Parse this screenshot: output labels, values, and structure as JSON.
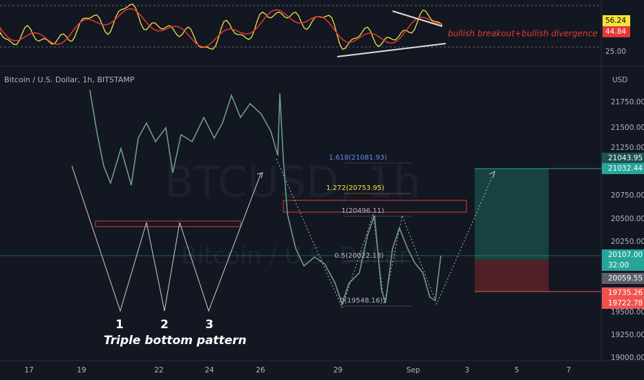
{
  "indicator": {
    "labels": [
      "56.24",
      "44.84",
      "25.00"
    ],
    "annotation": "bullish breakout+bullish divergence"
  },
  "symbol": "Bitcoin / U.S. Dollar, 1h, BITSTAMP",
  "watermark": {
    "ticker": "BTCUSD, 1h",
    "name": "Bitcoin / U.S. Dollar"
  },
  "price_axis": {
    "unit": "USD",
    "ticks": [
      "21750.00",
      "21500.00",
      "21250.00",
      "20750.00",
      "20500.00",
      "20250.00",
      "19500.00",
      "19250.00",
      "19000.00"
    ]
  },
  "price_tags": [
    "21043.95",
    "21032.44",
    "20107.00",
    "32:00",
    "20059.55",
    "19735.26",
    "19722.78"
  ],
  "time_axis": [
    "17",
    "19",
    "22",
    "24",
    "26",
    "29",
    "Sep",
    "3",
    "5",
    "7"
  ],
  "fib_levels": [
    "1.618(21081.93)",
    "1.272(20753.95)",
    "1(20496.11)",
    "0.5(20022.13)",
    "0(19548.16)"
  ],
  "pattern": {
    "points": [
      "1",
      "2",
      "3"
    ],
    "label": "Triple bottom pattern"
  }
}
